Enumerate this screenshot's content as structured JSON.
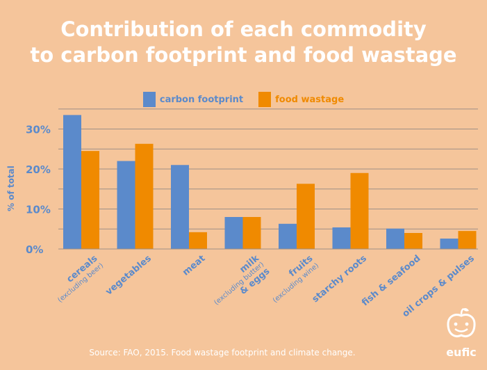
{
  "title_line1": "Contribution of each commodity",
  "title_line2": "to carbon footprint and food wastage",
  "source": "Source: FAO, 2015. Food wastage footprint and climate change.",
  "logo_text": "eufic",
  "colors": {
    "background": "#F5C59B",
    "carbon": "#5B8ACB",
    "wastage": "#F08A00",
    "text_blue": "#5B8ACB",
    "grid": "#9E8F86"
  },
  "chart_data": {
    "type": "bar",
    "title": "Contribution of each commodity to carbon footprint and food wastage",
    "ylabel": "% of total",
    "ylim": [
      0,
      33
    ],
    "yticks": [
      0,
      10,
      20,
      30
    ],
    "ytick_labels": [
      "0%",
      "10%",
      "20%",
      "30%"
    ],
    "legend_position": "top-center",
    "grid": true,
    "categories": [
      {
        "label": "cereals",
        "sub": "(excluding beer)"
      },
      {
        "label": "vegetables",
        "sub": ""
      },
      {
        "label": "meat",
        "sub": ""
      },
      {
        "label": "milk",
        "sub": "(excluding butter)",
        "label2": "& eggs"
      },
      {
        "label": "fruits",
        "sub": "(excluding wine)"
      },
      {
        "label": "starchy roots",
        "sub": ""
      },
      {
        "label": "fish & seafood",
        "sub": ""
      },
      {
        "label": "oil crops & pulses",
        "sub": ""
      }
    ],
    "series": [
      {
        "name": "carbon footprint",
        "color": "#5B8ACB",
        "values": [
          33.5,
          22,
          21,
          8,
          6.3,
          5.4,
          5.1,
          2.6
        ]
      },
      {
        "name": "food wastage",
        "color": "#F08A00",
        "values": [
          24.5,
          26.3,
          4.2,
          8,
          16.3,
          19,
          4,
          4.5
        ]
      }
    ]
  }
}
